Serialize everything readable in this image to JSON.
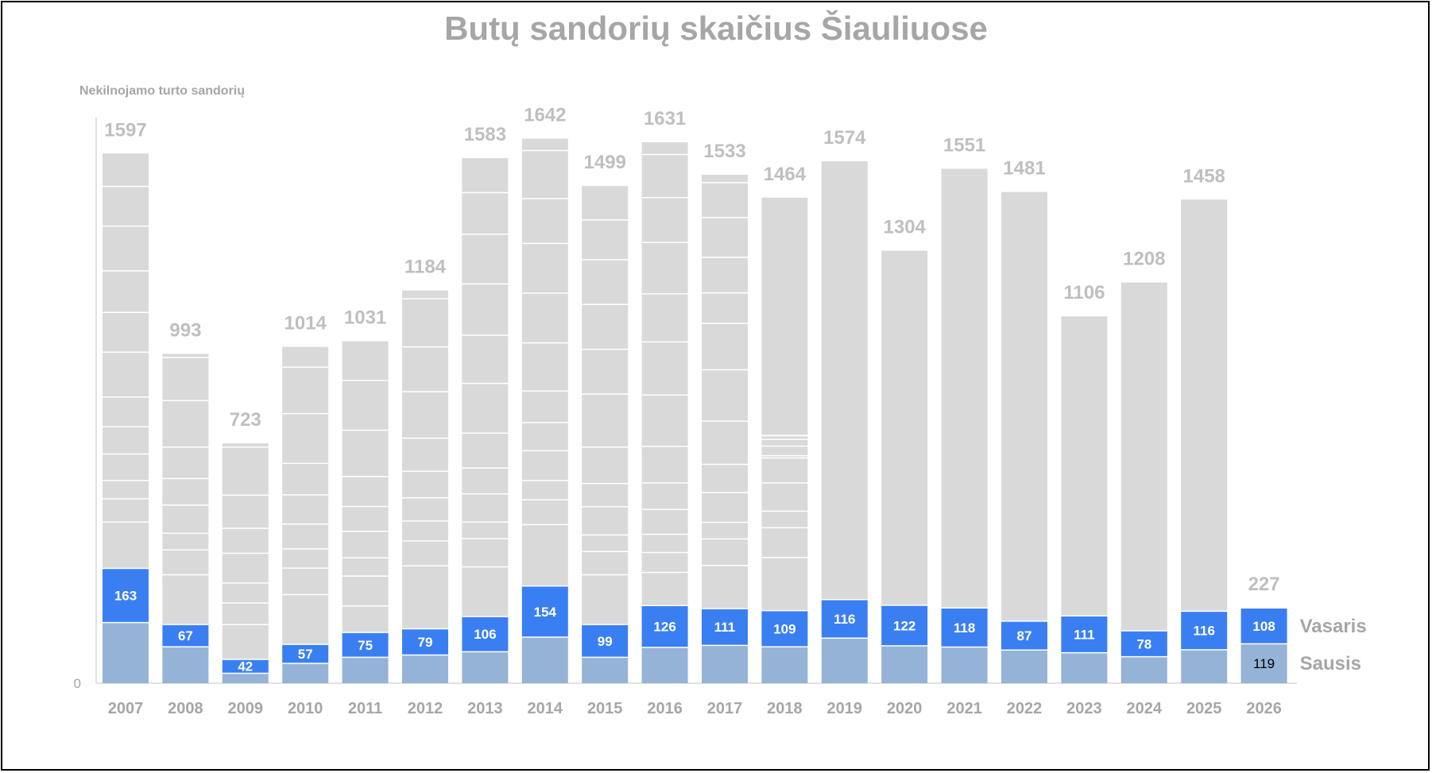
{
  "chart_data": {
    "type": "bar",
    "stacked": true,
    "title": "Butų sandorių skaičius Šiauliuose",
    "ylabel": "Nekilnojamo turto sandorių",
    "xlabel": "",
    "ylim": [
      0,
      1700
    ],
    "y_ticks": [
      "0"
    ],
    "grid": false,
    "legend": "right",
    "categories": [
      "2007",
      "2008",
      "2009",
      "2010",
      "2011",
      "2012",
      "2013",
      "2014",
      "2015",
      "2016",
      "2017",
      "2018",
      "2019",
      "2020",
      "2021",
      "2022",
      "2023",
      "2024",
      "2025",
      "2026"
    ],
    "series": [
      {
        "name": "Sausis",
        "color": "#95b3d7",
        "values": [
          183,
          110,
          30,
          60,
          78,
          85,
          95,
          139,
          78,
          108,
          114,
          110,
          136,
          113,
          109,
          100,
          92,
          80,
          101,
          119
        ],
        "labels": [
          "",
          "",
          "",
          "",
          "",
          "",
          "",
          "",
          "",
          "",
          "",
          "",
          "",
          "",
          "",
          "",
          "",
          "",
          "",
          "119"
        ]
      },
      {
        "name": "Vasaris",
        "color": "#3a7ff2",
        "values": [
          163,
          67,
          42,
          57,
          75,
          79,
          106,
          154,
          99,
          126,
          111,
          109,
          116,
          122,
          118,
          87,
          111,
          78,
          116,
          108
        ],
        "labels": [
          "163",
          "67",
          "42",
          "57",
          "75",
          "79",
          "106",
          "154",
          "99",
          "126",
          "111",
          "109",
          "116",
          "122",
          "118",
          "87",
          "111",
          "78",
          "116",
          "108"
        ]
      },
      {
        "name": "",
        "color": "#d9d9d9",
        "values": [
          1251,
          816,
          651,
          897,
          878,
          1020,
          1382,
          1349,
          1322,
          1397,
          1308,
          1245,
          1322,
          1069,
          1324,
          1294,
          903,
          1050,
          1241,
          0
        ]
      }
    ],
    "totals": [
      1597,
      993,
      723,
      1014,
      1031,
      1184,
      1583,
      1642,
      1499,
      1631,
      1533,
      1464,
      1574,
      1304,
      1551,
      1481,
      1106,
      1208,
      1458,
      227
    ],
    "total_color": "#bfbfbf",
    "month_segments": [
      [
        140,
        150,
        105,
        150,
        80,
        190,
        150,
        185,
        150,
        100,
        130,
        160
      ],
      [
        70,
        75,
        65,
        80,
        90,
        75,
        85,
        75,
        70,
        60,
        80,
        90
      ],
      [
        55,
        50,
        60,
        58,
        55,
        60,
        50,
        58,
        50,
        55,
        50,
        50
      ],
      [
        80,
        85,
        90,
        75,
        80,
        70,
        85,
        90,
        85,
        75,
        90,
        85
      ],
      [
        82,
        80,
        75,
        88,
        75,
        80,
        78,
        85,
        70,
        80,
        85,
        75
      ],
      [
        90,
        95,
        100,
        95,
        90,
        100,
        105,
        95,
        110,
        110,
        130,
        0
      ],
      [
        135,
        140,
        145,
        150,
        140,
        140,
        150,
        145,
        160,
        155,
        155,
        7
      ],
      [
        120,
        130,
        115,
        140,
        150,
        135,
        145,
        150,
        135,
        160,
        140,
        29
      ],
      [
        125,
        130,
        140,
        135,
        150,
        145,
        155,
        150,
        135,
        145,
        92,
        20
      ],
      [
        135,
        125,
        140,
        140,
        130,
        145,
        150,
        135,
        135,
        155,
        107,
        0
      ],
      [
        120,
        125,
        130,
        135,
        125,
        120,
        125,
        145,
        120,
        135,
        120,
        11
      ],
      [
        115,
        120,
        130,
        125,
        110,
        120,
        125,
        135,
        125,
        130,
        105,
        0
      ],
      [
        125,
        135,
        130,
        140,
        120,
        135,
        145,
        140,
        120,
        130,
        82,
        0
      ],
      [
        95,
        100,
        110,
        105,
        100,
        95,
        110,
        90,
        130,
        95,
        39,
        0
      ],
      [
        130,
        125,
        135,
        120,
        115,
        130,
        140,
        120,
        125,
        140,
        132,
        1
      ],
      [
        120,
        125,
        130,
        135,
        115,
        120,
        125,
        140,
        130,
        135,
        109,
        0
      ],
      [
        95,
        90,
        85,
        100,
        95,
        90,
        85,
        80,
        75,
        90,
        18,
        0
      ],
      [
        100,
        110,
        105,
        100,
        95,
        110,
        90,
        85,
        80,
        95,
        80,
        0
      ],
      [
        115,
        120,
        125,
        110,
        105,
        115,
        120,
        130,
        125,
        100,
        76,
        0
      ]
    ]
  }
}
